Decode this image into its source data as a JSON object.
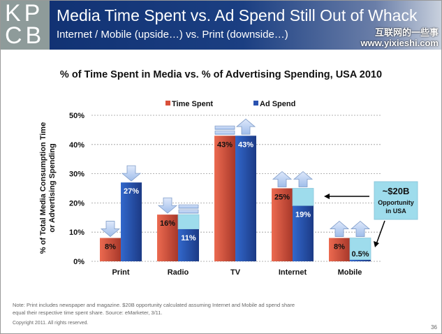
{
  "header": {
    "logo": "KPCB",
    "title": "Media Time Spent vs. Ad Spend Still Out of Whack",
    "subtitle": "Internet / Mobile (upside…) vs. Print (downside…)",
    "watermark": [
      "互联网的一些事",
      "www.yixieshi.com"
    ]
  },
  "chart_data": {
    "type": "bar",
    "title": "% of Time Spent in Media vs. % of Advertising Spending, USA 2010",
    "ylabel": "% of Total Media Consumption Time or Advertising Spending",
    "xlabel": "",
    "ylim": [
      0,
      50
    ],
    "yticks": [
      "0%",
      "10%",
      "20%",
      "30%",
      "40%",
      "50%"
    ],
    "grid": true,
    "legend_position": "top",
    "categories": [
      "Print",
      "Radio",
      "TV",
      "Internet",
      "Mobile"
    ],
    "series": [
      {
        "name": "Time Spent",
        "color": "#d9503a",
        "values": [
          8,
          16,
          43,
          25,
          8
        ],
        "labels": [
          "8%",
          "16%",
          "43%",
          "25%",
          "8%"
        ],
        "trend": [
          "down",
          "down",
          "equal",
          "up",
          "up"
        ]
      },
      {
        "name": "Ad Spend",
        "color": "#2a52b0",
        "values": [
          27,
          11,
          43,
          19,
          0.5
        ],
        "labels": [
          "27%",
          "11%",
          "43%",
          "19%",
          "0.5%"
        ],
        "trend": [
          "down",
          "equal",
          "up",
          "up",
          "up"
        ]
      }
    ],
    "opportunity_fill_color": "#9edcec",
    "annotation": {
      "amount": "~$20B",
      "text": "Opportunity in USA"
    }
  },
  "footer": {
    "note": "Note: Print includes newspaper and magazine. $20B opportunity calculated assuming Internet and Mobile ad spend share equal their respective time spent share. Source: eMarketer, 3/11.",
    "copyright": "Copyright 2011. All rights reserved.",
    "page": "36"
  }
}
